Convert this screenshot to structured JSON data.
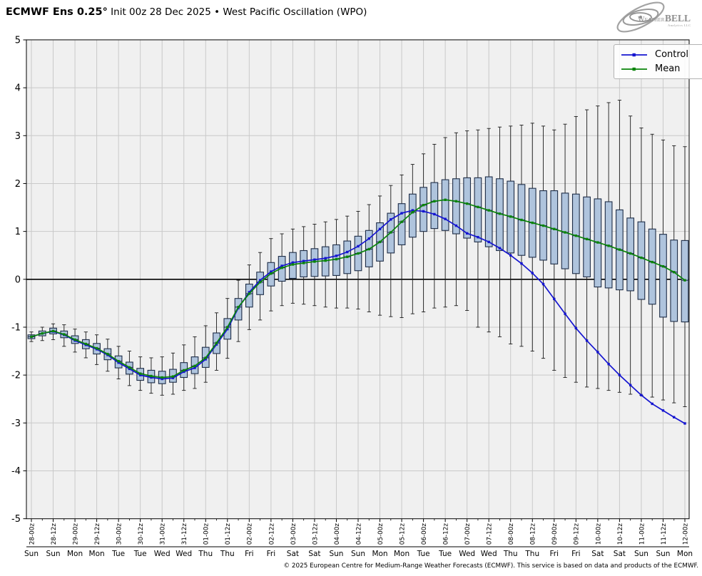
{
  "title": {
    "bold": "ECMWF Ens 0.25°",
    "rest": " Init 00z 28 Dec 2025 • West Pacific Oscillation (WPO)"
  },
  "logo": {
    "part1": "Weather",
    "part2": "BELL",
    "sub": "Analytics LLC"
  },
  "legend": {
    "items": [
      {
        "label": "Control",
        "color": "#1515d0"
      },
      {
        "label": "Mean",
        "color": "#0a840a"
      }
    ]
  },
  "footer": {
    "text": "© 2025 European Centre for Medium-Range Weather Forecasts (ECMWF). This service is based on data and products of the ECMWF."
  },
  "chart_data": {
    "type": "boxplot+line",
    "title": "ECMWF Ens 0.25° Init 00z 28 Dec 2025 • West Pacific Oscillation (WPO)",
    "ylim": [
      -5,
      5
    ],
    "ytick_labels": [
      "5",
      "4",
      "3",
      "2",
      "1",
      "0",
      "-1",
      "-2",
      "-3",
      "-4",
      "-5"
    ],
    "grid": true,
    "zero_line": true,
    "plot_bg": "#f0f0f0",
    "grid_color": "#c9c9c9",
    "step_hours": 6,
    "x_major_labels": [
      "28-00z",
      "28-12z",
      "29-00z",
      "29-12z",
      "30-00z",
      "30-12z",
      "31-00z",
      "31-12z",
      "01-00z",
      "01-12z",
      "02-00z",
      "02-12z",
      "03-00z",
      "03-12z",
      "04-00z",
      "04-12z",
      "05-00z",
      "05-12z",
      "06-00z",
      "06-12z",
      "07-00z",
      "07-12z",
      "08-00z",
      "08-12z",
      "09-00z",
      "09-12z",
      "10-00z",
      "10-12z",
      "11-00z",
      "11-12z",
      "12-00z"
    ],
    "x_day_labels": [
      "Sun",
      "Sun",
      "Mon",
      "Mon",
      "Tue",
      "Tue",
      "Wed",
      "Wed",
      "Thu",
      "Thu",
      "Fri",
      "Fri",
      "Sat",
      "Sat",
      "Sun",
      "Sun",
      "Mon",
      "Mon",
      "Tue",
      "Tue",
      "Wed",
      "Wed",
      "Thu",
      "Thu",
      "Fri",
      "Fri",
      "Sat",
      "Sat",
      "Sun",
      "Sun",
      "Mon"
    ],
    "legend_position": "upper right",
    "series": [
      {
        "name": "Control",
        "color": "#1515d0",
        "values": [
          -1.2,
          -1.13,
          -1.09,
          -1.16,
          -1.28,
          -1.37,
          -1.46,
          -1.58,
          -1.74,
          -1.87,
          -2.0,
          -2.05,
          -2.08,
          -2.06,
          -1.93,
          -1.85,
          -1.67,
          -1.36,
          -1.04,
          -0.6,
          -0.27,
          -0.02,
          0.16,
          0.28,
          0.35,
          0.38,
          0.41,
          0.44,
          0.49,
          0.57,
          0.69,
          0.85,
          1.05,
          1.25,
          1.38,
          1.44,
          1.42,
          1.36,
          1.26,
          1.12,
          0.96,
          0.88,
          0.78,
          0.65,
          0.5,
          0.33,
          0.13,
          -0.1,
          -0.41,
          -0.72,
          -1.02,
          -1.28,
          -1.52,
          -1.77,
          -2.0,
          -2.21,
          -2.42,
          -2.6,
          -2.74,
          -2.88,
          -3.01
        ]
      },
      {
        "name": "Mean",
        "color": "#0a840a",
        "values": [
          -1.2,
          -1.13,
          -1.08,
          -1.15,
          -1.26,
          -1.35,
          -1.44,
          -1.56,
          -1.71,
          -1.84,
          -1.97,
          -2.02,
          -2.05,
          -2.03,
          -1.9,
          -1.81,
          -1.64,
          -1.33,
          -1.0,
          -0.58,
          -0.3,
          -0.06,
          0.12,
          0.24,
          0.31,
          0.34,
          0.37,
          0.39,
          0.42,
          0.47,
          0.54,
          0.63,
          0.78,
          0.98,
          1.2,
          1.4,
          1.55,
          1.63,
          1.66,
          1.63,
          1.58,
          1.51,
          1.44,
          1.37,
          1.31,
          1.24,
          1.18,
          1.12,
          1.05,
          0.98,
          0.91,
          0.84,
          0.77,
          0.7,
          0.62,
          0.54,
          0.45,
          0.36,
          0.27,
          0.15,
          -0.02
        ]
      }
    ],
    "box_series": {
      "fill": "#afc4dd",
      "edge": "#1e2d47",
      "whisker_color": "#1a1a1a",
      "whisker_low": [
        -1.3,
        -1.28,
        -1.26,
        -1.4,
        -1.52,
        -1.64,
        -1.78,
        -1.92,
        -2.08,
        -2.22,
        -2.32,
        -2.38,
        -2.42,
        -2.4,
        -2.32,
        -2.28,
        -2.15,
        -1.9,
        -1.65,
        -1.3,
        -1.05,
        -0.85,
        -0.66,
        -0.55,
        -0.5,
        -0.52,
        -0.55,
        -0.58,
        -0.6,
        -0.6,
        -0.62,
        -0.68,
        -0.75,
        -0.78,
        -0.8,
        -0.72,
        -0.68,
        -0.6,
        -0.58,
        -0.55,
        -0.65,
        -1.0,
        -1.1,
        -1.2,
        -1.35,
        -1.4,
        -1.5,
        -1.65,
        -1.9,
        -2.05,
        -2.15,
        -2.25,
        -2.28,
        -2.32,
        -2.36,
        -2.4,
        -2.42,
        -2.46,
        -2.52,
        -2.58,
        -2.66
      ],
      "box_low": [
        -1.24,
        -1.18,
        -1.14,
        -1.22,
        -1.34,
        -1.45,
        -1.56,
        -1.68,
        -1.85,
        -1.98,
        -2.11,
        -2.16,
        -2.18,
        -2.15,
        -2.05,
        -1.97,
        -1.84,
        -1.55,
        -1.25,
        -0.85,
        -0.58,
        -0.32,
        -0.14,
        -0.04,
        0.02,
        0.05,
        0.06,
        0.07,
        0.08,
        0.12,
        0.18,
        0.26,
        0.38,
        0.55,
        0.72,
        0.88,
        1.0,
        1.06,
        1.02,
        0.95,
        0.86,
        0.78,
        0.68,
        0.6,
        0.55,
        0.5,
        0.46,
        0.4,
        0.32,
        0.22,
        0.12,
        0.05,
        -0.16,
        -0.18,
        -0.22,
        -0.24,
        -0.42,
        -0.52,
        -0.79,
        -0.88,
        -0.89
      ],
      "median": [
        -1.2,
        -1.13,
        -1.08,
        -1.15,
        -1.26,
        -1.35,
        -1.44,
        -1.56,
        -1.71,
        -1.84,
        -1.97,
        -2.02,
        -2.05,
        -2.03,
        -1.9,
        -1.81,
        -1.64,
        -1.33,
        -1.0,
        -0.58,
        -0.3,
        -0.06,
        0.12,
        0.24,
        0.31,
        0.34,
        0.37,
        0.39,
        0.42,
        0.47,
        0.54,
        0.63,
        0.78,
        0.98,
        1.2,
        1.4,
        1.55,
        1.63,
        1.66,
        1.63,
        1.58,
        1.51,
        1.44,
        1.37,
        1.31,
        1.24,
        1.18,
        1.12,
        1.05,
        0.98,
        0.91,
        0.84,
        0.77,
        0.7,
        0.62,
        0.54,
        0.45,
        0.36,
        0.27,
        0.15,
        -0.02
      ],
      "box_high": [
        -1.16,
        -1.08,
        -1.02,
        -1.08,
        -1.18,
        -1.26,
        -1.34,
        -1.45,
        -1.6,
        -1.73,
        -1.86,
        -1.9,
        -1.92,
        -1.88,
        -1.74,
        -1.62,
        -1.42,
        -1.12,
        -0.82,
        -0.4,
        -0.1,
        0.15,
        0.35,
        0.48,
        0.56,
        0.6,
        0.64,
        0.68,
        0.72,
        0.8,
        0.9,
        1.02,
        1.18,
        1.38,
        1.58,
        1.78,
        1.92,
        2.02,
        2.08,
        2.1,
        2.12,
        2.12,
        2.14,
        2.1,
        2.05,
        1.98,
        1.9,
        1.85,
        1.85,
        1.8,
        1.78,
        1.72,
        1.68,
        1.62,
        1.45,
        1.28,
        1.2,
        1.05,
        0.94,
        0.82,
        0.81
      ],
      "whisker_high": [
        -1.1,
        -1.0,
        -0.93,
        -0.95,
        -1.04,
        -1.1,
        -1.16,
        -1.25,
        -1.4,
        -1.5,
        -1.62,
        -1.64,
        -1.62,
        -1.54,
        -1.37,
        -1.2,
        -0.97,
        -0.7,
        -0.4,
        -0.02,
        0.3,
        0.56,
        0.85,
        0.95,
        1.05,
        1.1,
        1.15,
        1.2,
        1.25,
        1.32,
        1.42,
        1.56,
        1.74,
        1.96,
        2.18,
        2.4,
        2.62,
        2.82,
        2.96,
        3.06,
        3.1,
        3.12,
        3.15,
        3.18,
        3.2,
        3.22,
        3.26,
        3.2,
        3.12,
        3.24,
        3.4,
        3.54,
        3.62,
        3.69,
        3.74,
        3.41,
        3.16,
        3.03,
        2.91,
        2.79,
        2.77
      ]
    }
  }
}
